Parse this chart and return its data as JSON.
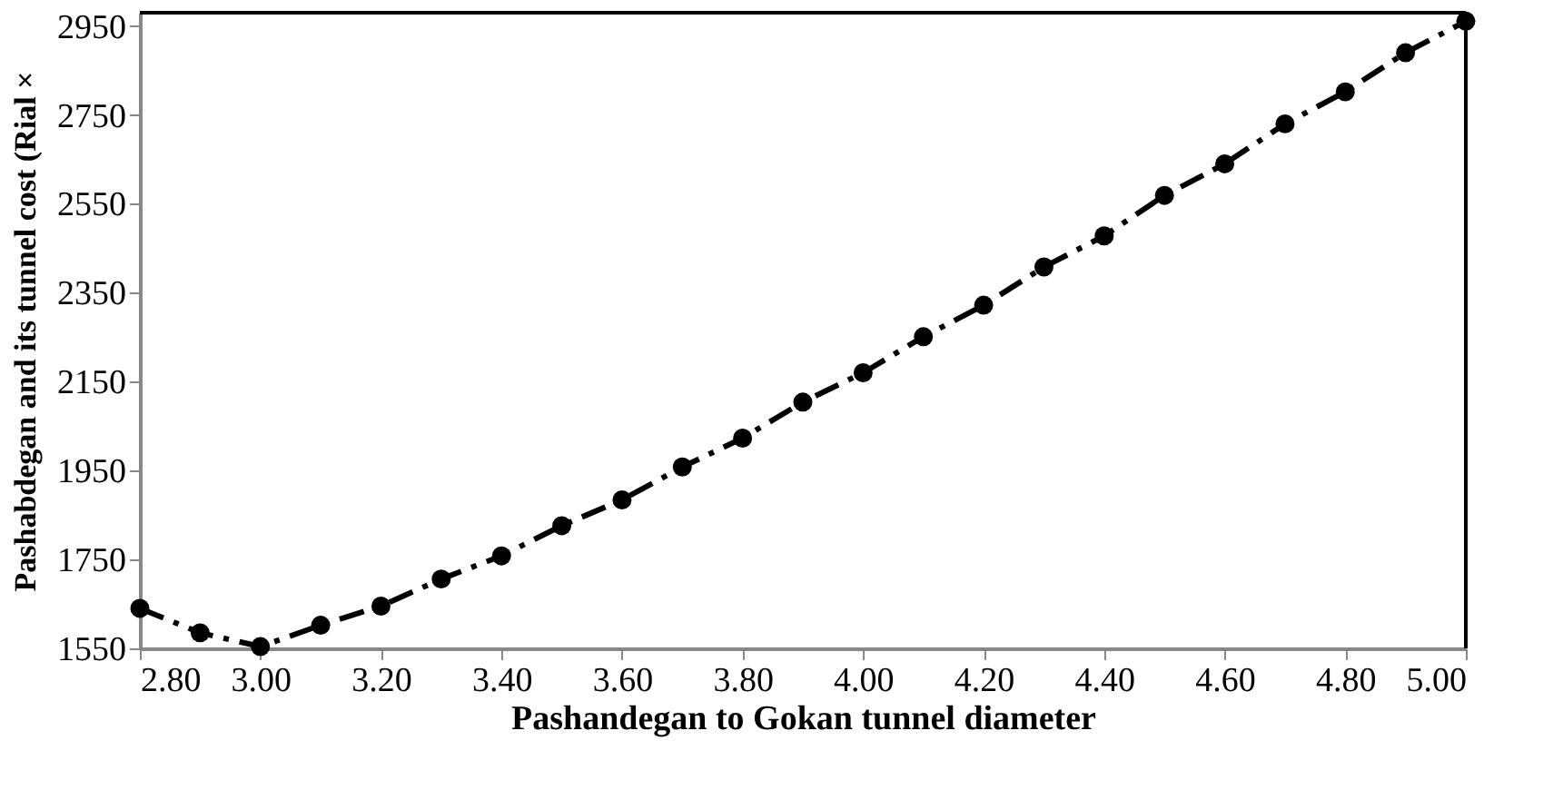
{
  "chart_data": {
    "type": "line",
    "xlabel": "Pashandegan to Gokan tunnel diameter",
    "ylabel": "Pashabdegan and its tunnel cost (Rial ×",
    "x": [
      2.8,
      2.9,
      3.0,
      3.1,
      3.2,
      3.3,
      3.4,
      3.5,
      3.6,
      3.7,
      3.8,
      3.9,
      4.0,
      4.1,
      4.2,
      4.3,
      4.4,
      4.5,
      4.6,
      4.7,
      4.8,
      4.9,
      5.0
    ],
    "series": [
      {
        "color": "#000000",
        "values": [
          1640,
          1585,
          1554,
          1602,
          1645,
          1706,
          1758,
          1826,
          1884,
          1958,
          2023,
          2104,
          2170,
          2251,
          2322,
          2408,
          2478,
          2569,
          2640,
          2730,
          2802,
          2890,
          2961
        ]
      }
    ],
    "xlim": [
      2.8,
      5.0
    ],
    "ylim": [
      1550,
      2980
    ],
    "xticks": [
      {
        "value": 2.8,
        "label": "2.80"
      },
      {
        "value": 3.0,
        "label": "3.00"
      },
      {
        "value": 3.2,
        "label": "3.20"
      },
      {
        "value": 3.4,
        "label": "3.40"
      },
      {
        "value": 3.6,
        "label": "3.60"
      },
      {
        "value": 3.8,
        "label": "3.80"
      },
      {
        "value": 4.0,
        "label": "4.00"
      },
      {
        "value": 4.2,
        "label": "4.20"
      },
      {
        "value": 4.4,
        "label": "4.40"
      },
      {
        "value": 4.6,
        "label": "4.60"
      },
      {
        "value": 4.8,
        "label": "4.80"
      },
      {
        "value": 5.0,
        "label": "5.00"
      }
    ],
    "yticks": [
      1550,
      1750,
      1950,
      2150,
      2350,
      2550,
      2750,
      2950
    ],
    "grid": false,
    "legend": false,
    "marker": "circle",
    "line_style": "dashed"
  }
}
